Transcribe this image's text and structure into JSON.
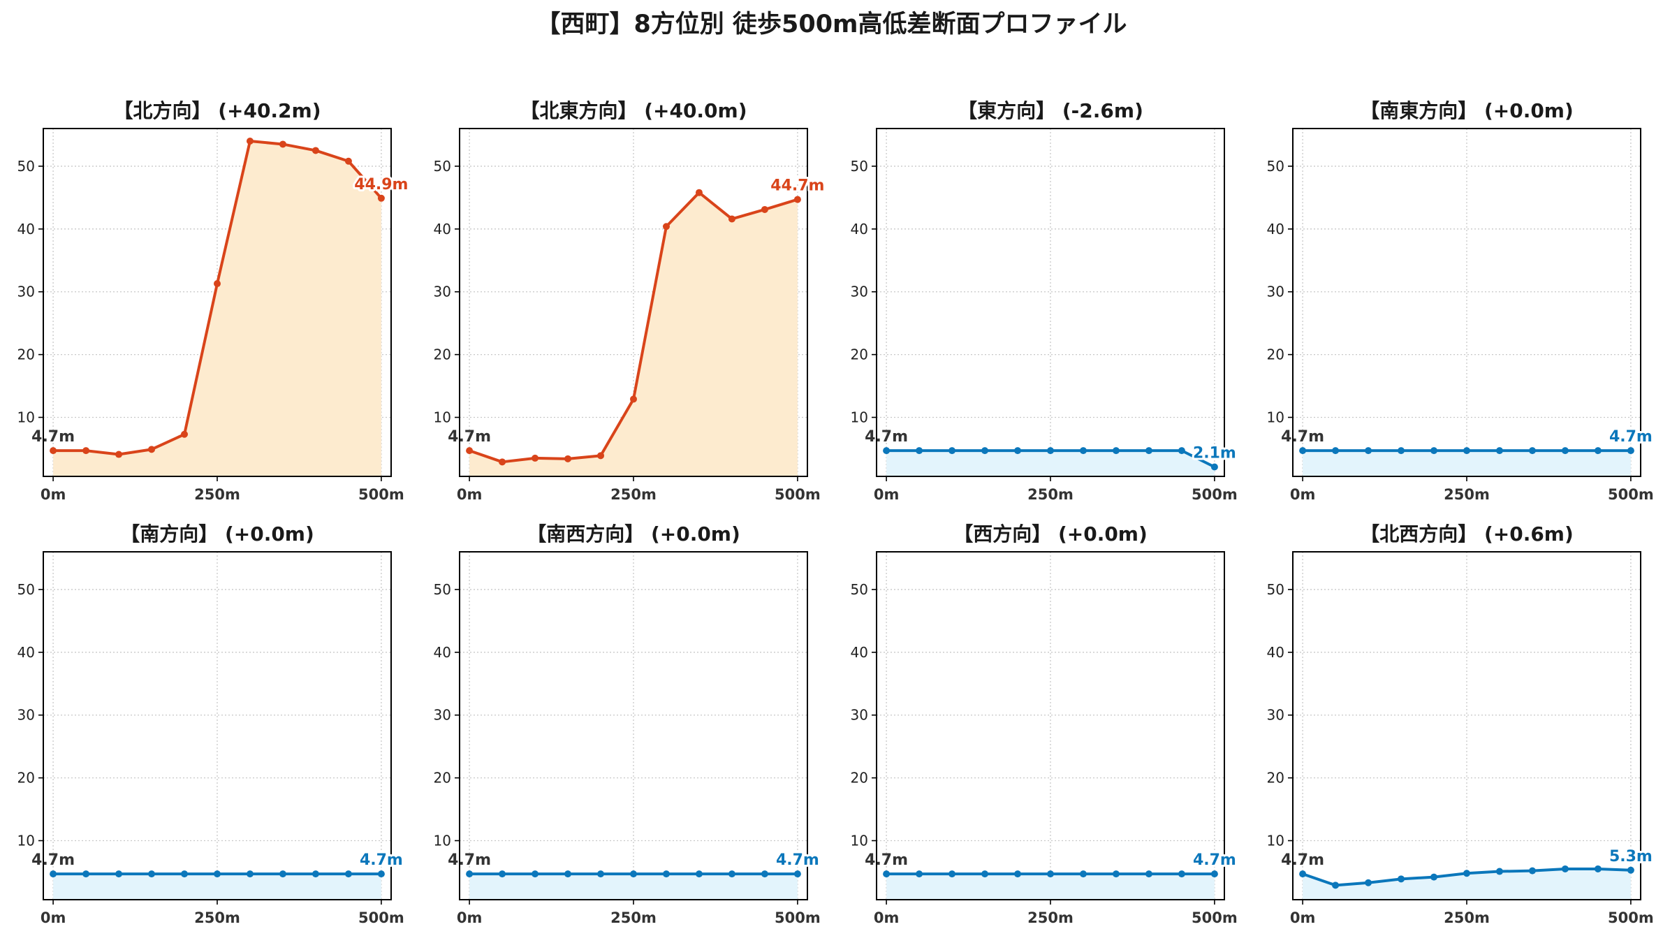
{
  "title": "【西町】8方位別 徒歩500m高低差断面プロファイル",
  "colors": {
    "up": "#d9441a",
    "up_fill": "#fdebcf",
    "flat": "#0b77bb",
    "flat_fill": "#e3f4fc",
    "start_label": "#333333"
  },
  "chart_data": [
    {
      "type": "line",
      "title": "【北方向】 (+40.2m)",
      "trend": "up",
      "x": [
        0,
        50,
        100,
        150,
        200,
        250,
        300,
        350,
        400,
        450,
        500
      ],
      "values": [
        4.7,
        4.7,
        4.1,
        4.9,
        7.3,
        31.3,
        54.0,
        53.5,
        52.5,
        50.8,
        44.9
      ],
      "start_label": "4.7m",
      "end_label": "44.9m",
      "ylim": [
        0.6,
        56
      ],
      "yticks": [
        10,
        20,
        30,
        40,
        50
      ],
      "xticks": [
        0,
        250,
        500
      ],
      "xtick_labels": [
        "0m",
        "250m",
        "500m"
      ],
      "grid": true
    },
    {
      "type": "line",
      "title": "【北東方向】 (+40.0m)",
      "trend": "up",
      "x": [
        0,
        50,
        100,
        150,
        200,
        250,
        300,
        350,
        400,
        450,
        500
      ],
      "values": [
        4.7,
        2.9,
        3.5,
        3.4,
        3.9,
        12.9,
        40.4,
        45.8,
        41.6,
        43.1,
        44.7
      ],
      "start_label": "4.7m",
      "end_label": "44.7m",
      "ylim": [
        0.6,
        56
      ],
      "yticks": [
        10,
        20,
        30,
        40,
        50
      ],
      "xticks": [
        0,
        250,
        500
      ],
      "xtick_labels": [
        "0m",
        "250m",
        "500m"
      ],
      "grid": true
    },
    {
      "type": "line",
      "title": "【東方向】 (-2.6m)",
      "trend": "flat",
      "x": [
        0,
        50,
        100,
        150,
        200,
        250,
        300,
        350,
        400,
        450,
        500
      ],
      "values": [
        4.7,
        4.7,
        4.7,
        4.7,
        4.7,
        4.7,
        4.7,
        4.7,
        4.7,
        4.7,
        2.1
      ],
      "start_label": "4.7m",
      "end_label": "2.1m",
      "ylim": [
        0.6,
        56
      ],
      "yticks": [
        10,
        20,
        30,
        40,
        50
      ],
      "xticks": [
        0,
        250,
        500
      ],
      "xtick_labels": [
        "0m",
        "250m",
        "500m"
      ],
      "grid": true
    },
    {
      "type": "line",
      "title": "【南東方向】 (+0.0m)",
      "trend": "flat",
      "x": [
        0,
        50,
        100,
        150,
        200,
        250,
        300,
        350,
        400,
        450,
        500
      ],
      "values": [
        4.7,
        4.7,
        4.7,
        4.7,
        4.7,
        4.7,
        4.7,
        4.7,
        4.7,
        4.7,
        4.7
      ],
      "start_label": "4.7m",
      "end_label": "4.7m",
      "ylim": [
        0.6,
        56
      ],
      "yticks": [
        10,
        20,
        30,
        40,
        50
      ],
      "xticks": [
        0,
        250,
        500
      ],
      "xtick_labels": [
        "0m",
        "250m",
        "500m"
      ],
      "grid": true
    },
    {
      "type": "line",
      "title": "【南方向】 (+0.0m)",
      "trend": "flat",
      "x": [
        0,
        50,
        100,
        150,
        200,
        250,
        300,
        350,
        400,
        450,
        500
      ],
      "values": [
        4.7,
        4.7,
        4.7,
        4.7,
        4.7,
        4.7,
        4.7,
        4.7,
        4.7,
        4.7,
        4.7
      ],
      "start_label": "4.7m",
      "end_label": "4.7m",
      "ylim": [
        0.6,
        56
      ],
      "yticks": [
        10,
        20,
        30,
        40,
        50
      ],
      "xticks": [
        0,
        250,
        500
      ],
      "xtick_labels": [
        "0m",
        "250m",
        "500m"
      ],
      "grid": true
    },
    {
      "type": "line",
      "title": "【南西方向】 (+0.0m)",
      "trend": "flat",
      "x": [
        0,
        50,
        100,
        150,
        200,
        250,
        300,
        350,
        400,
        450,
        500
      ],
      "values": [
        4.7,
        4.7,
        4.7,
        4.7,
        4.7,
        4.7,
        4.7,
        4.7,
        4.7,
        4.7,
        4.7
      ],
      "start_label": "4.7m",
      "end_label": "4.7m",
      "ylim": [
        0.6,
        56
      ],
      "yticks": [
        10,
        20,
        30,
        40,
        50
      ],
      "xticks": [
        0,
        250,
        500
      ],
      "xtick_labels": [
        "0m",
        "250m",
        "500m"
      ],
      "grid": true
    },
    {
      "type": "line",
      "title": "【西方向】 (+0.0m)",
      "trend": "flat",
      "x": [
        0,
        50,
        100,
        150,
        200,
        250,
        300,
        350,
        400,
        450,
        500
      ],
      "values": [
        4.7,
        4.7,
        4.7,
        4.7,
        4.7,
        4.7,
        4.7,
        4.7,
        4.7,
        4.7,
        4.7
      ],
      "start_label": "4.7m",
      "end_label": "4.7m",
      "ylim": [
        0.6,
        56
      ],
      "yticks": [
        10,
        20,
        30,
        40,
        50
      ],
      "xticks": [
        0,
        250,
        500
      ],
      "xtick_labels": [
        "0m",
        "250m",
        "500m"
      ],
      "grid": true
    },
    {
      "type": "line",
      "title": "【北西方向】 (+0.6m)",
      "trend": "flat",
      "x": [
        0,
        50,
        100,
        150,
        200,
        250,
        300,
        350,
        400,
        450,
        500
      ],
      "values": [
        4.7,
        2.9,
        3.3,
        3.9,
        4.2,
        4.8,
        5.1,
        5.2,
        5.5,
        5.5,
        5.3
      ],
      "start_label": "4.7m",
      "end_label": "5.3m",
      "ylim": [
        0.6,
        56
      ],
      "yticks": [
        10,
        20,
        30,
        40,
        50
      ],
      "xticks": [
        0,
        250,
        500
      ],
      "xtick_labels": [
        "0m",
        "250m",
        "500m"
      ],
      "grid": true
    }
  ]
}
